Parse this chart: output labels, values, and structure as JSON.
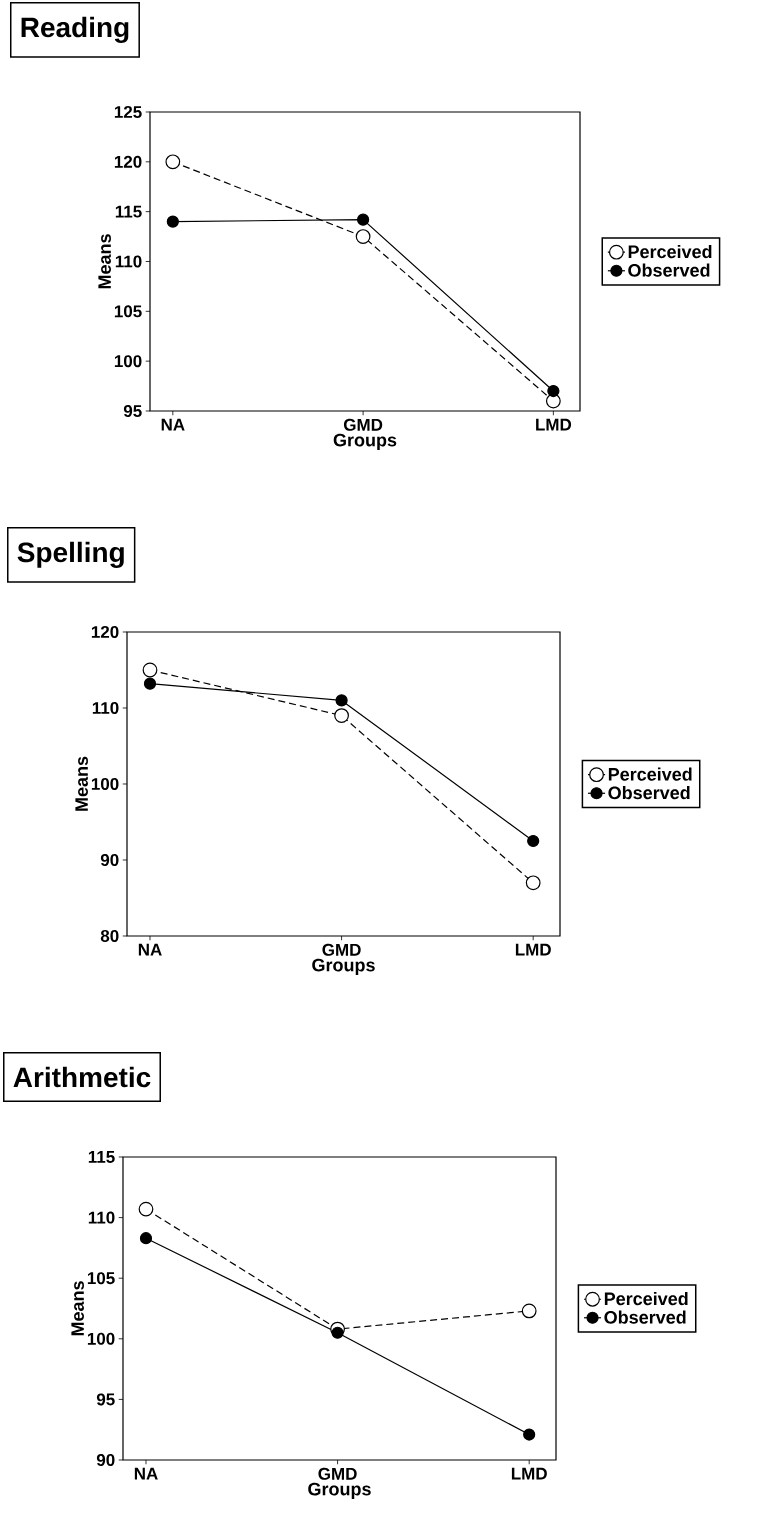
{
  "chart_data": [
    {
      "type": "line",
      "title": "Reading",
      "xlabel": "Groups",
      "ylabel": "Means",
      "categories": [
        "NA",
        "GMD",
        "LMD"
      ],
      "ylim": [
        95,
        125
      ],
      "yticks": [
        95,
        100,
        105,
        110,
        115,
        120,
        125
      ],
      "legend": "right",
      "series": [
        {
          "name": "Perceived",
          "color": "#000000",
          "values": [
            120,
            112.5,
            96
          ],
          "marker": "circle",
          "line_style": "dashed"
        },
        {
          "name": "Observed",
          "color": "#000000",
          "values": [
            114,
            114.2,
            97
          ],
          "marker": "circle",
          "line_style": "solid"
        }
      ]
    },
    {
      "type": "line",
      "title": "Spelling",
      "xlabel": "Groups",
      "ylabel": "Means",
      "categories": [
        "NA",
        "GMD",
        "LMD"
      ],
      "ylim": [
        80,
        120
      ],
      "yticks": [
        80,
        90,
        100,
        110,
        120
      ],
      "legend": "right",
      "series": [
        {
          "name": "Perceived",
          "color": "#000000",
          "values": [
            115,
            109,
            87
          ],
          "marker": "circle",
          "line_style": "dashed"
        },
        {
          "name": "Observed",
          "color": "#000000",
          "values": [
            113.2,
            111,
            92.5
          ],
          "marker": "circle",
          "line_style": "solid"
        }
      ]
    },
    {
      "type": "line",
      "title": "Arithmetic",
      "xlabel": "Groups",
      "ylabel": "Means",
      "categories": [
        "NA",
        "GMD",
        "LMD"
      ],
      "ylim": [
        90,
        115
      ],
      "yticks": [
        90,
        95,
        100,
        105,
        110,
        115
      ],
      "legend": "right",
      "series": [
        {
          "name": "Perceived",
          "color": "#000000",
          "values": [
            110.7,
            100.8,
            102.3
          ],
          "marker": "circle",
          "line_style": "dashed"
        },
        {
          "name": "Observed",
          "color": "#000000",
          "values": [
            108.3,
            100.5,
            92.1
          ],
          "marker": "circle",
          "line_style": "solid"
        }
      ]
    }
  ]
}
